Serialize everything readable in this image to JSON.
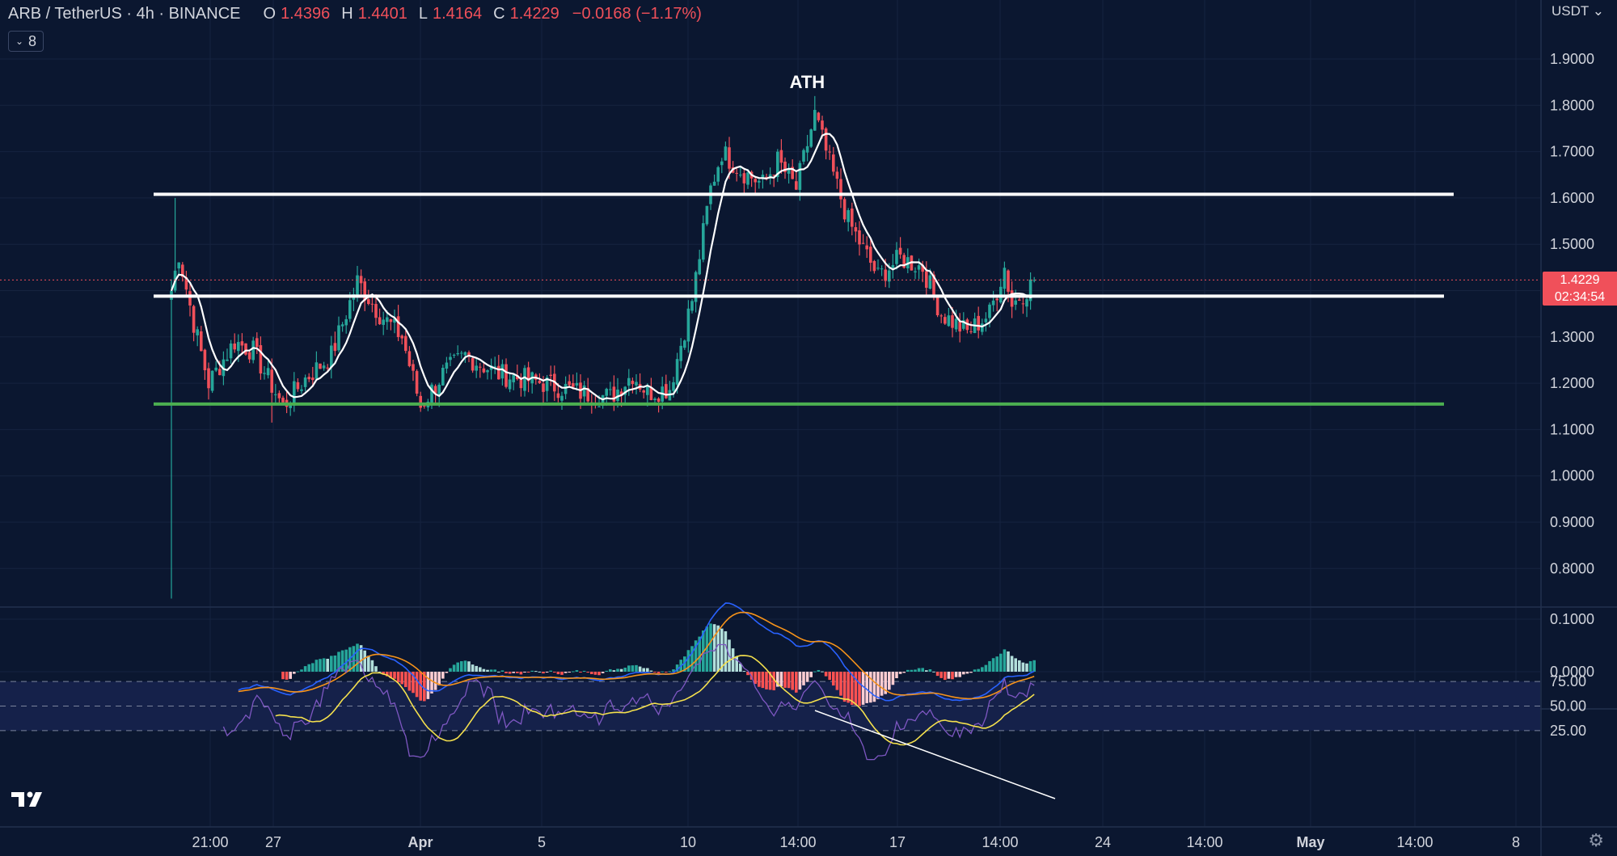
{
  "header": {
    "symbol": "ARB / TetherUS · 4h · BINANCE",
    "open_label": "O",
    "open": "1.4396",
    "high_label": "H",
    "high": "1.4401",
    "low_label": "L",
    "low": "1.4164",
    "close_label": "C",
    "close": "1.4229",
    "change": "−0.0168 (−1.17%)",
    "indicator_count": "8"
  },
  "currency_label": "USDT",
  "price_tag": {
    "price": "1.4229",
    "countdown": "02:34:54"
  },
  "colors": {
    "background": "#0b1730",
    "up": "#26a69a",
    "down": "#f0505a",
    "level": "#ffffff",
    "support": "#4caf50",
    "ma": "#ffffff",
    "macd": "#2962ff",
    "signal": "#f7931a",
    "rsi": "#7e57c2",
    "rsi_ma": "#f4e04d"
  },
  "chart_data": [
    {
      "type": "candlestick",
      "title": "ARB / TetherUS · 4h · BINANCE",
      "ylim": [
        0.72,
        1.98
      ],
      "yticks": [
        "1.9000",
        "1.8000",
        "1.7000",
        "1.6000",
        "1.5000",
        "1.4000",
        "1.3000",
        "1.2000",
        "1.1000",
        "1.0000",
        "0.9000",
        "0.8000"
      ],
      "xticks": [
        "21:00",
        "27",
        "Apr",
        "5",
        "10",
        "14:00",
        "17",
        "14:00",
        "24",
        "14:00",
        "May",
        "14:00",
        "8"
      ],
      "key_points": [
        {
          "t": 0,
          "p": 1.4
        },
        {
          "t": 2,
          "p": 1.48
        },
        {
          "t": 6,
          "p": 1.33
        },
        {
          "t": 10,
          "p": 1.2
        },
        {
          "t": 17,
          "p": 1.29
        },
        {
          "t": 22,
          "p": 1.27
        },
        {
          "t": 30,
          "p": 1.15
        },
        {
          "t": 36,
          "p": 1.21
        },
        {
          "t": 43,
          "p": 1.26
        },
        {
          "t": 50,
          "p": 1.42
        },
        {
          "t": 56,
          "p": 1.35
        },
        {
          "t": 62,
          "p": 1.3
        },
        {
          "t": 67,
          "p": 1.15
        },
        {
          "t": 73,
          "p": 1.22
        },
        {
          "t": 79,
          "p": 1.26
        },
        {
          "t": 88,
          "p": 1.22
        },
        {
          "t": 100,
          "p": 1.2
        },
        {
          "t": 110,
          "p": 1.18
        },
        {
          "t": 118,
          "p": 1.17
        },
        {
          "t": 124,
          "p": 1.22
        },
        {
          "t": 128,
          "p": 1.18
        },
        {
          "t": 134,
          "p": 1.19
        },
        {
          "t": 140,
          "p": 1.38
        },
        {
          "t": 145,
          "p": 1.62
        },
        {
          "t": 148,
          "p": 1.7
        },
        {
          "t": 153,
          "p": 1.66
        },
        {
          "t": 159,
          "p": 1.63
        },
        {
          "t": 163,
          "p": 1.68
        },
        {
          "t": 168,
          "p": 1.62
        },
        {
          "t": 173,
          "p": 1.78
        },
        {
          "t": 176,
          "p": 1.7
        },
        {
          "t": 182,
          "p": 1.55
        },
        {
          "t": 190,
          "p": 1.43
        },
        {
          "t": 196,
          "p": 1.47
        },
        {
          "t": 202,
          "p": 1.45
        },
        {
          "t": 207,
          "p": 1.35
        },
        {
          "t": 214,
          "p": 1.31
        },
        {
          "t": 220,
          "p": 1.35
        },
        {
          "t": 224,
          "p": 1.45
        },
        {
          "t": 226,
          "p": 1.37
        },
        {
          "t": 232,
          "p": 1.42
        }
      ],
      "levels": [
        {
          "price": 1.608,
          "color": "white"
        },
        {
          "price": 1.388,
          "color": "white"
        },
        {
          "price": 1.155,
          "color": "green"
        }
      ],
      "annotation": {
        "text": "ATH",
        "t": 174,
        "price": 1.82
      },
      "current_price": 1.4229
    },
    {
      "type": "macd",
      "yticks": [
        "0.1000",
        "0.0000"
      ]
    },
    {
      "type": "rsi",
      "yticks": [
        "75.00",
        "50.00",
        "25.00"
      ],
      "bands": [
        70,
        50,
        30
      ]
    }
  ]
}
